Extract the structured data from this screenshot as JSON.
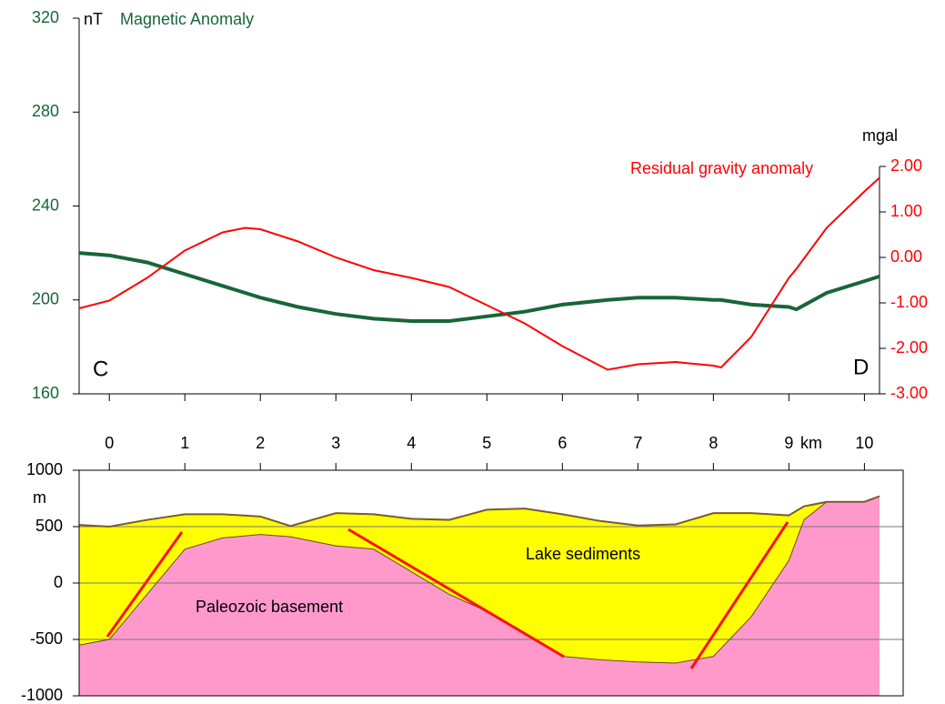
{
  "chart_data": [
    {
      "type": "line",
      "left_axis_unit": "nT",
      "left_axis_title": "Magnetic Anomaly",
      "right_axis_unit": "mgal",
      "start_label": "C",
      "end_label": "D",
      "x_unit": "km",
      "x": [
        -0.4,
        0,
        0.5,
        1,
        1.5,
        1.8,
        2,
        2.5,
        3,
        3.5,
        4,
        4.5,
        5,
        5.5,
        6,
        6.6,
        7,
        7.5,
        8,
        8.1,
        8.5,
        9,
        9.1,
        9.5,
        10,
        10.2
      ],
      "xlim": [
        -0.4,
        10.2
      ],
      "xticks": [
        0,
        1,
        2,
        3,
        4,
        5,
        6,
        7,
        8,
        9,
        10
      ],
      "ylim": [
        160,
        320
      ],
      "yticks": [
        160,
        200,
        240,
        280,
        320
      ],
      "y2lim": [
        -3,
        2
      ],
      "y2ticks": [
        {
          "value": -3,
          "label": "-3.00"
        },
        {
          "value": -2,
          "label": "-2.00"
        },
        {
          "value": -1,
          "label": "-1.00"
        },
        {
          "value": 0,
          "label": "0.00"
        },
        {
          "value": 1,
          "label": "1.00"
        },
        {
          "value": 2,
          "label": "2.00"
        }
      ],
      "series": [
        {
          "name": "Magnetic Anomaly",
          "color": "#17663a",
          "values": [
            220,
            219,
            216,
            211,
            206,
            203,
            201,
            197,
            194,
            192,
            191,
            191,
            193,
            195,
            198,
            200,
            201,
            201,
            200,
            200,
            198,
            197,
            196,
            203,
            208,
            210
          ]
        },
        {
          "name": "Residual gravity anomaly",
          "color": "#ff0000",
          "axis": "y2",
          "values": [
            -1.12,
            -0.95,
            -0.45,
            0.15,
            0.55,
            0.65,
            0.62,
            0.35,
            0.0,
            -0.28,
            -0.45,
            -0.65,
            -1.05,
            -1.45,
            -1.95,
            -2.47,
            -2.35,
            -2.3,
            -2.38,
            -2.42,
            -1.75,
            -0.45,
            -0.25,
            0.65,
            1.45,
            1.75
          ]
        }
      ]
    },
    {
      "type": "cross-section",
      "y_unit": "m",
      "x": [
        -0.4,
        0,
        0.5,
        1,
        1.5,
        2,
        2.4,
        3,
        3.5,
        4,
        4.5,
        5,
        5.5,
        6,
        6.5,
        7,
        7.5,
        8,
        8.5,
        9,
        9.2,
        9.5,
        10,
        10.2
      ],
      "xlim": [
        -0.4,
        10.2
      ],
      "ylim": [
        -1000,
        1000
      ],
      "yticks": [
        -1000,
        -500,
        0,
        500,
        1000
      ],
      "grid": true,
      "series": [
        {
          "name": "Lake sediments",
          "color": "#ffff00",
          "values": [
            515,
            500,
            560,
            610,
            610,
            590,
            505,
            620,
            610,
            570,
            560,
            650,
            660,
            610,
            550,
            510,
            520,
            620,
            620,
            600,
            680,
            720,
            720,
            770
          ]
        },
        {
          "name": "Paleozoic basement",
          "color": "#ff99cc",
          "values": [
            -550,
            -500,
            -100,
            300,
            400,
            430,
            410,
            330,
            300,
            100,
            -100,
            -250,
            -450,
            -650,
            -680,
            -700,
            -710,
            -650,
            -300,
            200,
            560,
            720,
            720,
            770
          ]
        }
      ]
    }
  ]
}
